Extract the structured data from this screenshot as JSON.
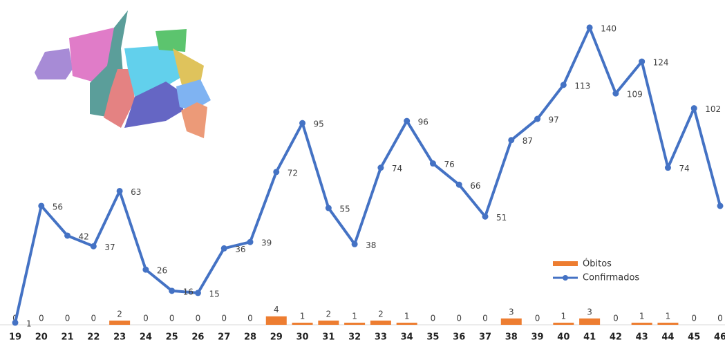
{
  "chart_data": {
    "type": "line-bar",
    "categories": [
      "19",
      "20",
      "21",
      "22",
      "23",
      "24",
      "25",
      "26",
      "27",
      "28",
      "29",
      "30",
      "31",
      "32",
      "33",
      "34",
      "35",
      "36",
      "37",
      "38",
      "39",
      "40",
      "41",
      "42",
      "43",
      "44",
      "45",
      "46"
    ],
    "series": [
      {
        "name": "Óbitos",
        "type": "bar",
        "color": "#ed7d31",
        "values": [
          0,
          0,
          0,
          0,
          2,
          0,
          0,
          0,
          0,
          0,
          4,
          1,
          2,
          1,
          2,
          1,
          0,
          0,
          0,
          3,
          0,
          1,
          3,
          0,
          1,
          1,
          0,
          0
        ]
      },
      {
        "name": "Confirmados",
        "type": "line",
        "color": "#4472c4",
        "values": [
          1,
          56,
          42,
          37,
          63,
          26,
          16,
          15,
          36,
          39,
          72,
          95,
          55,
          38,
          74,
          96,
          76,
          66,
          51,
          87,
          97,
          113,
          140,
          109,
          124,
          74,
          102,
          56
        ],
        "value_labels": [
          "1",
          "56",
          "42",
          "37",
          "63",
          "26",
          "16",
          "15",
          "36",
          "39",
          "72",
          "95",
          "55",
          "38",
          "74",
          "96",
          "76",
          "66",
          "51",
          "87",
          "97",
          "113",
          "140",
          "109",
          "124",
          "74",
          "102",
          null
        ]
      }
    ],
    "ylim": [
      0,
      153
    ]
  }
}
